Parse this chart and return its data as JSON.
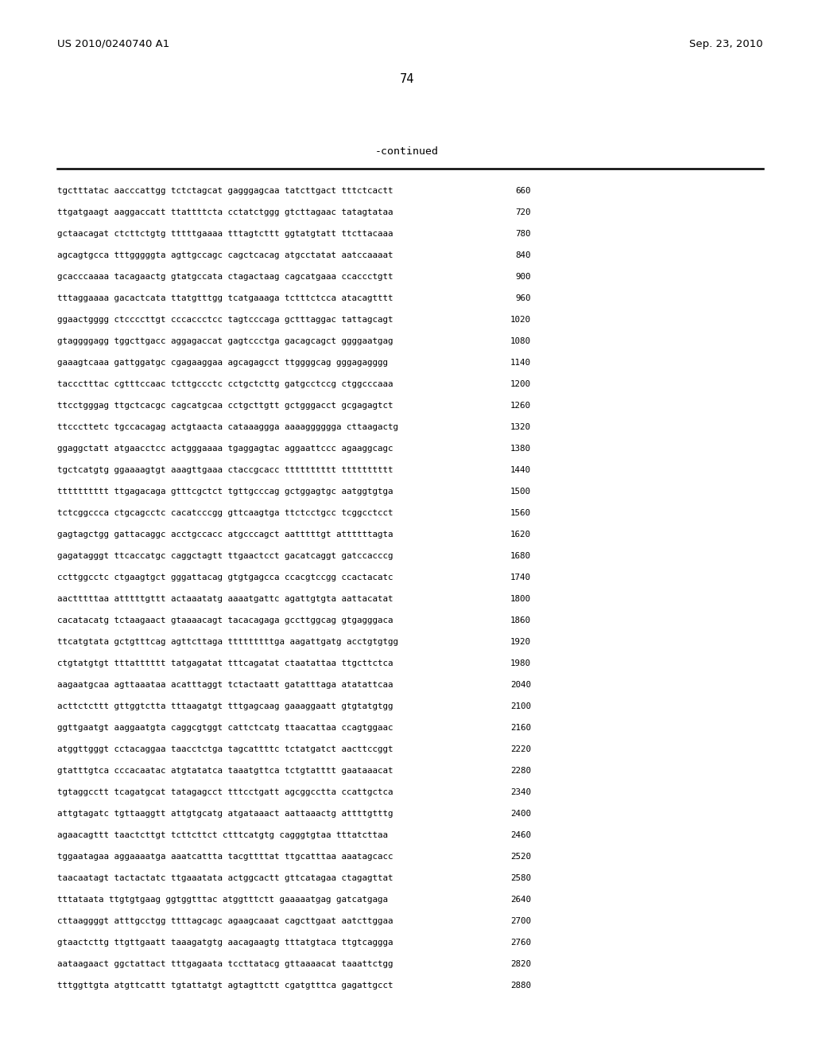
{
  "header_left": "US 2010/0240740 A1",
  "header_right": "Sep. 23, 2010",
  "page_number": "74",
  "continued_label": "-continued",
  "background_color": "#ffffff",
  "text_color": "#000000",
  "seq_font_size": 7.8,
  "header_font_size": 9.5,
  "page_num_font_size": 10.5,
  "continued_font_size": 9.5,
  "lines": [
    {
      "seq": "tgctttatac aacccattgg tctctagcat gagggagcaa tatcttgact tttctcactt",
      "num": 660
    },
    {
      "seq": "ttgatgaagt aaggaccatt ttattttcta cctatctggg gtcttagaac tatagtataa",
      "num": 720
    },
    {
      "seq": "gctaacagat ctcttctgtg tttttgaaaa tttagtcttt ggtatgtatt ttcttacaaa",
      "num": 780
    },
    {
      "seq": "agcagtgcca tttgggggta agttgccagc cagctcacag atgcctatat aatccaaaat",
      "num": 840
    },
    {
      "seq": "gcacccaaaa tacagaactg gtatgccata ctagactaag cagcatgaaa ccaccctgtt",
      "num": 900
    },
    {
      "seq": "tttaggaaaa gacactcata ttatgtttgg tcatgaaaga tctttctcca atacagtttt",
      "num": 960
    },
    {
      "seq": "ggaactgggg ctccccttgt cccaccctcc tagtcccaga gctttaggac tattagcagt",
      "num": 1020
    },
    {
      "seq": "gtaggggagg tggcttgacc aggagaccat gagtccctga gacagcagct ggggaatgag",
      "num": 1080
    },
    {
      "seq": "gaaagtcaaa gattggatgc cgagaaggaa agcagagcct ttggggcag gggagagggg",
      "num": 1140
    },
    {
      "seq": "taccctttac cgtttccaac tcttgccctc cctgctcttg gatgcctccg ctggcccaaa",
      "num": 1200
    },
    {
      "seq": "ttcctgggag ttgctcacgc cagcatgcaa cctgcttgtt gctgggacct gcgagagtct",
      "num": 1260
    },
    {
      "seq": "ttcccttetc tgccacagag actgtaacta cataaaggga aaaagggggga cttaagactg",
      "num": 1320
    },
    {
      "seq": "ggaggctatt atgaacctcc actgggaaaa tgaggagtac aggaattccc agaaggcagc",
      "num": 1380
    },
    {
      "seq": "tgctcatgtg ggaaaagtgt aaagttgaaa ctaccgcacc tttttttttt tttttttttt",
      "num": 1440
    },
    {
      "seq": "tttttttttt ttgagacaga gtttcgctct tgttgcccag gctggagtgc aatggtgtga",
      "num": 1500
    },
    {
      "seq": "tctcggccca ctgcagcctc cacatcccgg gttcaagtga ttctcctgcc tcggcctcct",
      "num": 1560
    },
    {
      "seq": "gagtagctgg gattacaggc acctgccacc atgcccagct aatttttgt attttttagta",
      "num": 1620
    },
    {
      "seq": "gagatagggt ttcaccatgc caggctagtt ttgaactcct gacatcaggt gatccacccg",
      "num": 1680
    },
    {
      "seq": "ccttggcctc ctgaagtgct gggattacag gtgtgagcca ccacgtccgg ccactacatc",
      "num": 1740
    },
    {
      "seq": "aactttttaa atttttgttt actaaatatg aaaatgattc agattgtgta aattacatat",
      "num": 1800
    },
    {
      "seq": "cacatacatg tctaagaact gtaaaacagt tacacagaga gccttggcag gtgagggaca",
      "num": 1860
    },
    {
      "seq": "ttcatgtata gctgtttcag agttcttaga tttttttttga aagattgatg acctgtgtgg",
      "num": 1920
    },
    {
      "seq": "ctgtatgtgt tttatttttt tatgagatat tttcagatat ctaatattaa ttgcttctca",
      "num": 1980
    },
    {
      "seq": "aagaatgcaa agttaaataa acatttaggt tctactaatt gatatttaga atatattcaa",
      "num": 2040
    },
    {
      "seq": "acttctcttt gttggtctta tttaagatgt tttgagcaag gaaaggaatt gtgtatgtgg",
      "num": 2100
    },
    {
      "seq": "ggttgaatgt aaggaatgta caggcgtggt cattctcatg ttaacattaa ccagtggaac",
      "num": 2160
    },
    {
      "seq": "atggttgggt cctacaggaa taacctctga tagcattttc tctatgatct aacttccggt",
      "num": 2220
    },
    {
      "seq": "gtatttgtca cccacaatac atgtatatca taaatgttca tctgtatttt gaataaacat",
      "num": 2280
    },
    {
      "seq": "tgtaggcctt tcagatgcat tatagagcct tttcctgatt agcggcctta ccattgctca",
      "num": 2340
    },
    {
      "seq": "attgtagatc tgttaaggtt attgtgcatg atgataaact aattaaactg attttgtttg",
      "num": 2400
    },
    {
      "seq": "agaacagttt taactcttgt tcttcttct ctttcatgtg cagggtgtaa tttatcttaa",
      "num": 2460
    },
    {
      "seq": "tggaatagaa aggaaaatga aaatcattta tacgttttat ttgcatttaa aaatagcacc",
      "num": 2520
    },
    {
      "seq": "taacaatagt tactactatc ttgaaatata actggcactt gttcatagaa ctagagttat",
      "num": 2580
    },
    {
      "seq": "tttataata ttgtgtgaag ggtggtttac atggtttctt gaaaaatgag gatcatgaga",
      "num": 2640
    },
    {
      "seq": "cttaaggggt atttgcctgg ttttagcagc agaagcaaat cagcttgaat aatcttggaa",
      "num": 2700
    },
    {
      "seq": "gtaactcttg ttgttgaatt taaagatgtg aacagaagtg tttatgtaca ttgtcaggga",
      "num": 2760
    },
    {
      "seq": "aataagaact ggctattact tttgagaata tccttatacg gttaaaacat taaattctgg",
      "num": 2820
    },
    {
      "seq": "tttggttgta atgttcattt tgtattatgt agtagttctt cgatgtttca gagattgcct",
      "num": 2880
    }
  ]
}
